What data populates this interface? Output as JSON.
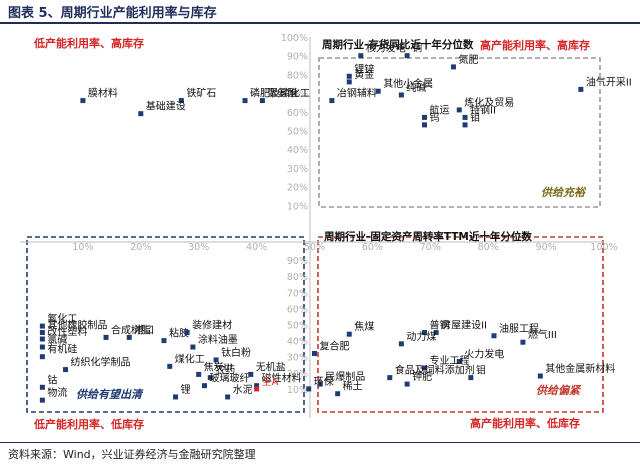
{
  "figure": {
    "title": "图表 5、周期行业产能利用率与库存",
    "source": "资料来源：Wind，兴业证券经济与金融研究院整理"
  },
  "chart_data": {
    "type": "scatter",
    "title": "",
    "xlabel": "",
    "ylabel": "",
    "grid": false,
    "top_axis": {
      "title": "周期行业-存货同比近十年分位数",
      "range": [
        0,
        100
      ],
      "ticks": [
        "0%",
        "10%",
        "20%",
        "30%",
        "40%",
        "50%",
        "60%",
        "70%",
        "80%",
        "90%",
        "100%"
      ]
    },
    "bottom_axis": {
      "title": "周期行业-固定资产周转率TTM近十年分位数",
      "range": [
        0,
        100
      ],
      "ticks": [
        "0%",
        "10%",
        "20%",
        "30%",
        "40%",
        "50%",
        "60%",
        "70%",
        "80%",
        "90%",
        "100%"
      ]
    },
    "quadrants": [
      {
        "name": "top-left",
        "label": "低产能利用率、高库存"
      },
      {
        "name": "top-right",
        "label": "高产能利用率、高库存"
      },
      {
        "name": "bottom-left",
        "label": "低产能利用率、低库存"
      },
      {
        "name": "bottom-right",
        "label": "高产能利用率、低库存"
      }
    ],
    "boxes": [
      {
        "name": "top-right",
        "label": "供给充裕",
        "color": "#9a9a9a"
      },
      {
        "name": "bottom-left",
        "label": "供给有望出清",
        "color": "#1f3b73"
      },
      {
        "name": "bottom-right",
        "label": "供给偏紧",
        "color": "#c0392b"
      }
    ],
    "series": [
      {
        "name": "存货同比分位数",
        "panel": "top",
        "points": [
          {
            "label": "核力发电",
            "x": 58,
            "y": 90
          },
          {
            "label": "铜",
            "x": 66,
            "y": 90
          },
          {
            "label": "氮肥",
            "x": 74,
            "y": 84
          },
          {
            "label": "锂锌",
            "x": 56,
            "y": 79
          },
          {
            "label": "黄金",
            "x": 56,
            "y": 76
          },
          {
            "label": "其他小金属",
            "x": 61,
            "y": 71
          },
          {
            "label": "纯碱",
            "x": 65,
            "y": 69
          },
          {
            "label": "炼化及贸易",
            "x": 75,
            "y": 61
          },
          {
            "label": "冶钢辅料",
            "x": 53,
            "y": 66
          },
          {
            "label": "航运",
            "x": 69,
            "y": 57
          },
          {
            "label": "特钢II",
            "x": 76,
            "y": 57
          },
          {
            "label": "钨",
            "x": 69,
            "y": 53
          },
          {
            "label": "钼",
            "x": 76,
            "y": 53
          },
          {
            "label": "油气开采II",
            "x": 96,
            "y": 72
          },
          {
            "label": "膜材料",
            "x": 10,
            "y": 66
          },
          {
            "label": "铁矿石",
            "x": 27,
            "y": 66
          },
          {
            "label": "磷肥及磷化工",
            "x": 38,
            "y": 66
          },
          {
            "label": "聚氨酯",
            "x": 41,
            "y": 66
          },
          {
            "label": "基础建设",
            "x": 20,
            "y": 59
          }
        ]
      },
      {
        "name": "固定资产周转率分位数",
        "panel": "bottom",
        "points": [
          {
            "label": "普钢",
            "x": 69,
            "y": 45
          },
          {
            "label": "房屋建设II",
            "x": 71,
            "y": 45
          },
          {
            "label": "焦煤",
            "x": 56,
            "y": 44
          },
          {
            "label": "油服工程",
            "x": 81,
            "y": 43
          },
          {
            "label": "燃气III",
            "x": 86,
            "y": 39
          },
          {
            "label": "动力煤",
            "x": 65,
            "y": 38
          },
          {
            "label": "复合肥",
            "x": 50,
            "y": 32
          },
          {
            "label": "火力发电",
            "x": 75,
            "y": 27
          },
          {
            "label": "专业工程",
            "x": 69,
            "y": 23
          },
          {
            "label": "其他金属新材料",
            "x": 89,
            "y": 18
          },
          {
            "label": "食品及饲料添加剂",
            "x": 63,
            "y": 17
          },
          {
            "label": "钼",
            "x": 77,
            "y": 17
          },
          {
            "label": "民爆制品",
            "x": 51,
            "y": 13
          },
          {
            "label": "钾肥",
            "x": 66,
            "y": 13
          },
          {
            "label": "稀土",
            "x": 54,
            "y": 7
          },
          {
            "label": "氟化工",
            "x": 3,
            "y": 49
          },
          {
            "label": "其他橡胶制品",
            "x": 3,
            "y": 45
          },
          {
            "label": "改性塑料",
            "x": 3,
            "y": 41
          },
          {
            "label": "合成树脂",
            "x": 14,
            "y": 42
          },
          {
            "label": "港口",
            "x": 18,
            "y": 42
          },
          {
            "label": "粘胶",
            "x": 24,
            "y": 40
          },
          {
            "label": "装修建材",
            "x": 28,
            "y": 45
          },
          {
            "label": "涂料油墨",
            "x": 29,
            "y": 36
          },
          {
            "label": "氯碱",
            "x": 3,
            "y": 36
          },
          {
            "label": "有机硅",
            "x": 3,
            "y": 30
          },
          {
            "label": "钛白粉",
            "x": 33,
            "y": 28
          },
          {
            "label": "煤化工",
            "x": 25,
            "y": 24
          },
          {
            "label": "纺织化学制品",
            "x": 7,
            "y": 22
          },
          {
            "label": "焦炭III",
            "x": 30,
            "y": 19
          },
          {
            "label": "无机盐",
            "x": 39,
            "y": 19
          },
          {
            "label": "农药",
            "x": 32,
            "y": 17
          },
          {
            "label": "玻璃玻纤",
            "x": 31,
            "y": 12
          },
          {
            "label": "磁性材料",
            "x": 40,
            "y": 12
          },
          {
            "label": "钴",
            "x": 3,
            "y": 11
          },
          {
            "label": "全A",
            "x": 40,
            "y": 10,
            "highlight": true
          },
          {
            "label": "环保",
            "x": 49,
            "y": 10
          },
          {
            "label": "锂",
            "x": 26,
            "y": 5
          },
          {
            "label": "水泥",
            "x": 35,
            "y": 5
          },
          {
            "label": "物流",
            "x": 3,
            "y": 3
          }
        ]
      }
    ]
  },
  "style": {
    "point_color": "#1f3b73",
    "highlight_color": "#d62728",
    "quadrant_label_color": "#d62728",
    "axis_text_color": "#b0b0b0",
    "tag_blue": "#1f3b73",
    "tag_red": "#c0392b",
    "tag_olive": "#7a6a1a"
  }
}
